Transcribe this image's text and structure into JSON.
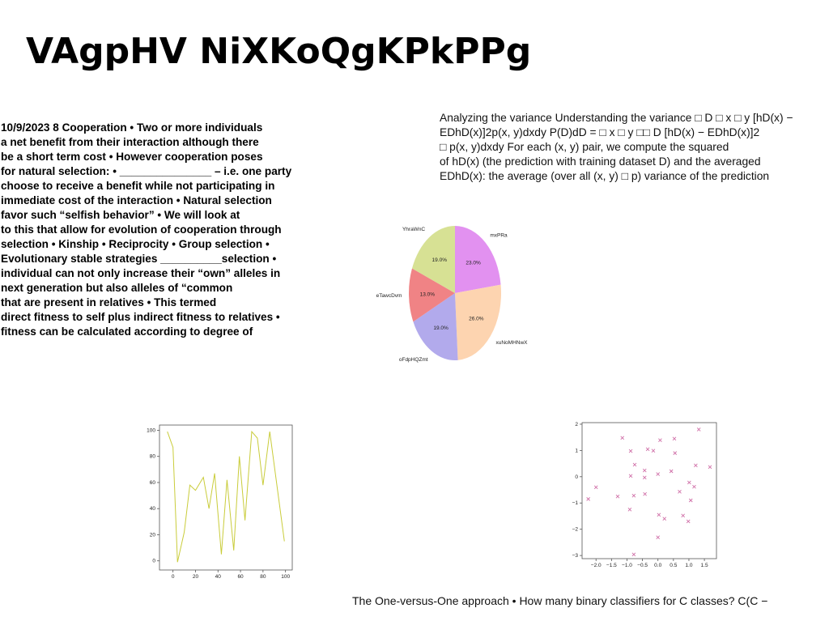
{
  "title": "VAgpHV NiXKoQgKPkPPg",
  "left_text": [
    "10/9/2023 8 Cooperation • Two or more individuals",
    "a net benefit from their interaction although there",
    "be a short term cost • However cooperation poses",
    "for natural selection: • _______________ – i.e. one party",
    "choose to receive a benefit while not participating in",
    "immediate cost of the interaction • Natural selection",
    "favor such “selfish behavior” • We will look at",
    "to this that allow for evolution of cooperation through",
    "selection • Kinship • Reciprocity • Group selection •",
    "Evolutionary stable strategies __________selection •",
    "individual can not only increase their “own” alleles in",
    "next generation but also alleles of “common",
    "that are present in relatives • This termed",
    "direct fitness to self plus indirect fitness to relatives •",
    "fitness can be calculated according to degree of"
  ],
  "right_text": [
    "Analyzing the variance Understanding the variance □ D □ x □ y [hD(x) −",
    "EDhD(x)]2p(x, y)dxdy P(D)dD = □ x □ y □□ D [hD(x) − EDhD(x)]2",
    "□ p(x, y)dxdy For each (x, y) pair, we compute the squared",
    "of hD(x) (the prediction with training dataset D) and the averaged",
    "EDhD(x): the average (over all (x, y) □ p) variance of the prediction"
  ],
  "footer": "The One-versus-One approach • How many binary classifiers for C classes? C(C −",
  "chart_data": [
    {
      "type": "pie",
      "categories": [
        "mxPRa",
        "xuNoMHNwX",
        "oFdpHQZmt",
        "eTawcDvm",
        "YhraWnC"
      ],
      "values": [
        23,
        26,
        19,
        13,
        19
      ],
      "value_labels": [
        "23.0%",
        "26.0%",
        "19.0%",
        "13.0%",
        "19.0%"
      ],
      "colors": [
        "#e291f0",
        "#fdd4b0",
        "#b2aaec",
        "#f08385",
        "#d7e194"
      ]
    },
    {
      "type": "line",
      "x": [
        -5,
        0,
        4,
        10,
        15,
        20,
        27,
        32,
        37,
        43,
        48,
        54,
        59,
        64,
        70,
        75,
        80,
        86,
        99
      ],
      "values": [
        99,
        87,
        -1,
        22,
        58,
        54,
        64,
        40,
        67,
        5,
        62,
        8,
        80,
        31,
        99,
        94,
        58,
        99,
        15
      ],
      "color": "#c9cc3a",
      "xlim": [
        -12,
        106
      ],
      "ylim": [
        -7,
        104
      ],
      "xticks": [
        0,
        20,
        40,
        60,
        80,
        100
      ],
      "yticks": [
        0,
        20,
        40,
        60,
        80,
        100
      ]
    },
    {
      "type": "scatter",
      "x": [
        -1.15,
        -0.88,
        -0.33,
        -0.15,
        0.07,
        0.53,
        1.32,
        0.55,
        -0.75,
        -0.43,
        0.43,
        0,
        -0.88,
        -0.43,
        1.22,
        1.68,
        -2.0,
        -2.25,
        -1.3,
        -0.78,
        -0.42,
        0.7,
        1.01,
        1.17,
        1.06,
        -0.91,
        0.03,
        0.21,
        0.81,
        0.98,
        0,
        -0.78
      ],
      "values": [
        1.48,
        0.98,
        1.05,
        0.99,
        1.39,
        1.45,
        1.8,
        0.9,
        0.46,
        0.24,
        0.21,
        0.1,
        0.03,
        -0.03,
        0.43,
        0.37,
        -0.4,
        -0.85,
        -0.75,
        -0.72,
        -0.66,
        -0.57,
        -0.22,
        -0.38,
        -0.9,
        -1.25,
        -1.45,
        -1.6,
        -1.48,
        -1.7,
        -2.31,
        -2.96
      ],
      "color": "#d070a8",
      "marker": "x",
      "xlim": [
        -2.45,
        1.89
      ],
      "ylim": [
        -3.12,
        2.06
      ],
      "xticks": [
        {
          "value": -2.0,
          "label": "−2.0"
        },
        {
          "value": -1.5,
          "label": "−1.5"
        },
        {
          "value": -1.0,
          "label": "−1.0"
        },
        {
          "value": -0.5,
          "label": "−0.5"
        },
        {
          "value": 0,
          "label": "0.0"
        },
        0.5,
        {
          "value": 1.0,
          "label": "1.0"
        },
        1.5
      ],
      "yticks": [
        {
          "value": -3,
          "label": "−3"
        },
        {
          "value": -2,
          "label": "−2"
        },
        {
          "value": -1,
          "label": "−1"
        },
        0,
        1,
        2
      ]
    }
  ]
}
